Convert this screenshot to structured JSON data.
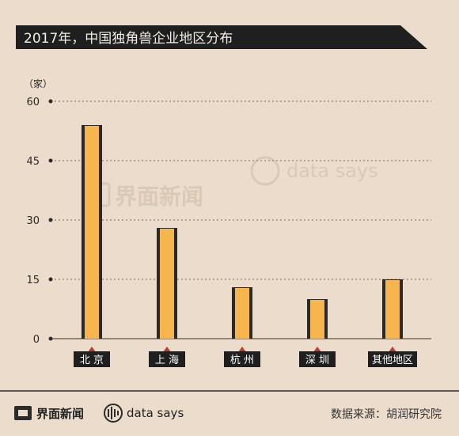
{
  "header": {
    "title": "2017年，中国独角兽企业地区分布"
  },
  "footer": {
    "brand": "界面新闻",
    "sub_brand": "data says",
    "source": "数据来源：胡润研究院"
  },
  "watermark": {
    "brand": "界面新闻",
    "sub_brand": "data says"
  },
  "colors": {
    "bar": "#f6b54d",
    "bar_edge": "#2a2a2a",
    "title_bg": "#1f1f1f",
    "marker": "#c0392b"
  },
  "chart_data": {
    "type": "bar",
    "categories": [
      "北京",
      "上海",
      "杭州",
      "深圳",
      "其他地区"
    ],
    "category_labels": [
      "北 京",
      "上 海",
      "杭 州",
      "深 圳",
      "其他地区"
    ],
    "values": [
      54,
      28,
      13,
      10,
      15
    ],
    "title": "2017年，中国独角兽企业地区分布",
    "ylabel": "（家）",
    "ylim": [
      0,
      60
    ],
    "yticks": [
      0,
      15,
      30,
      45,
      60
    ],
    "grid": true
  }
}
